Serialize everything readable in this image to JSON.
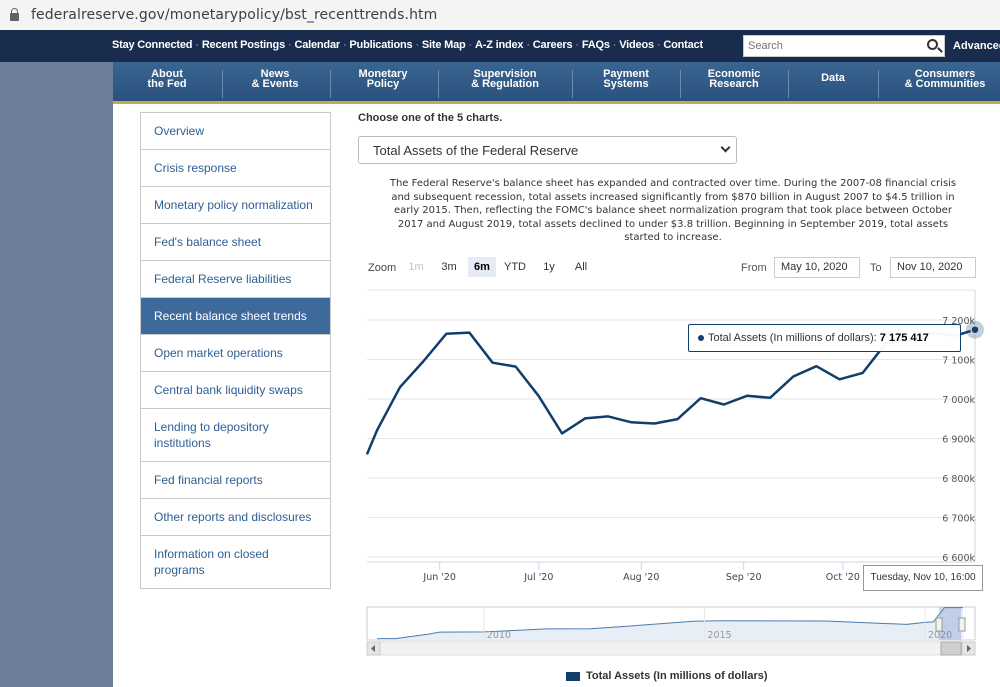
{
  "browser": {
    "url": "federalreserve.gov/monetarypolicy/bst_recenttrends.htm"
  },
  "header": {
    "utility_links": [
      "Stay Connected",
      "Recent Postings",
      "Calendar",
      "Publications",
      "Site Map",
      "A-Z index",
      "Careers",
      "FAQs",
      "Videos",
      "Contact"
    ],
    "search_placeholder": "Search",
    "advanced_label": "Advanced"
  },
  "nav": [
    {
      "line1": "About",
      "line2": "the Fed"
    },
    {
      "line1": "News",
      "line2": "& Events"
    },
    {
      "line1": "Monetary",
      "line2": "Policy"
    },
    {
      "line1": "Supervision",
      "line2": "& Regulation"
    },
    {
      "line1": "Payment",
      "line2": "Systems"
    },
    {
      "line1": "Economic",
      "line2": "Research"
    },
    {
      "line1": "Data",
      "line2": ""
    },
    {
      "line1": "Consumers",
      "line2": "& Communities"
    }
  ],
  "sidebar": {
    "items": [
      {
        "label": "Overview"
      },
      {
        "label": "Crisis response"
      },
      {
        "label": "Monetary policy normalization"
      },
      {
        "label": "Fed's balance sheet"
      },
      {
        "label": "Federal Reserve liabilities"
      },
      {
        "label": "Recent balance sheet trends",
        "active": true
      },
      {
        "label": "Open market operations"
      },
      {
        "label": "Central bank liquidity swaps"
      },
      {
        "label": "Lending to depository institutions"
      },
      {
        "label": "Fed financial reports"
      },
      {
        "label": "Other reports and disclosures"
      },
      {
        "label": "Information on closed programs"
      }
    ]
  },
  "main": {
    "choose_label": "Choose one of the 5 charts.",
    "selected_chart": "Total Assets of the Federal Reserve",
    "description": "The Federal Reserve's balance sheet has expanded and contracted over time. During the 2007-08 financial crisis and subsequent recession, total assets increased significantly from $870 billion in August 2007 to $4.5 trillion in early 2015. Then, reflecting the FOMC's balance sheet normalization program that took place between October 2017 and August 2019, total assets declined to under $3.8 trillion. Beginning in September 2019, total assets started to increase."
  },
  "controls": {
    "zoom_label": "Zoom",
    "zoom_buttons": [
      {
        "label": "1m",
        "state": "disabled"
      },
      {
        "label": "3m",
        "state": "normal"
      },
      {
        "label": "6m",
        "state": "active"
      },
      {
        "label": "YTD",
        "state": "normal"
      },
      {
        "label": "1y",
        "state": "normal"
      },
      {
        "label": "All",
        "state": "normal"
      }
    ],
    "from_label": "From",
    "from_date": "May 10, 2020",
    "to_label": "To",
    "to_date": "Nov 10, 2020"
  },
  "tooltip": {
    "series_label": "Total Assets (In millions of dollars):",
    "value": "7 175 417",
    "date": "Tuesday, Nov 10, 16:00"
  },
  "chart_data": {
    "type": "line",
    "series": [
      {
        "name": "Total Assets (In millions of dollars)",
        "color": "#123e6b",
        "points": [
          [
            "2020-05-10",
            6860000
          ],
          [
            "2020-05-13",
            6920000
          ],
          [
            "2020-05-20",
            7030000
          ],
          [
            "2020-05-27",
            7095000
          ],
          [
            "2020-06-03",
            7165000
          ],
          [
            "2020-06-10",
            7168000
          ],
          [
            "2020-06-17",
            7092000
          ],
          [
            "2020-06-24",
            7082000
          ],
          [
            "2020-07-01",
            7007000
          ],
          [
            "2020-07-08",
            6913000
          ],
          [
            "2020-07-15",
            6951000
          ],
          [
            "2020-07-22",
            6956000
          ],
          [
            "2020-07-29",
            6941000
          ],
          [
            "2020-08-05",
            6938000
          ],
          [
            "2020-08-12",
            6949000
          ],
          [
            "2020-08-19",
            7002000
          ],
          [
            "2020-08-26",
            6986000
          ],
          [
            "2020-09-02",
            7008000
          ],
          [
            "2020-09-09",
            7003000
          ],
          [
            "2020-09-16",
            7057000
          ],
          [
            "2020-09-23",
            7083000
          ],
          [
            "2020-09-30",
            7050000
          ],
          [
            "2020-10-07",
            7066000
          ],
          [
            "2020-10-14",
            7141000
          ],
          [
            "2020-10-21",
            7149000
          ],
          [
            "2020-10-28",
            7168000
          ],
          [
            "2020-11-04",
            7160000
          ],
          [
            "2020-11-10",
            7175417
          ]
        ]
      }
    ],
    "ylim": [
      6600000,
      7200000
    ],
    "y_ticks": [
      6600000,
      6700000,
      6800000,
      6900000,
      7000000,
      7100000,
      7200000
    ],
    "y_tick_labels": [
      "6 600k",
      "6 700k",
      "6 800k",
      "6 900k",
      "7 000k",
      "7 100k",
      "7 200k"
    ],
    "x_ticks": [
      "2020-06-01",
      "2020-07-01",
      "2020-08-01",
      "2020-09-01",
      "2020-10-01"
    ],
    "x_tick_labels": [
      "Jun '20",
      "Jul '20",
      "Aug '20",
      "Sep '20",
      "Oct '20"
    ],
    "navigator": {
      "labels": [
        "2010",
        "2015",
        "2020"
      ],
      "overview_values": [
        [
          "2008-01-01",
          890000
        ],
        [
          "2008-10-01",
          1800000
        ],
        [
          "2009-01-01",
          2200000
        ],
        [
          "2010-01-01",
          2250000
        ],
        [
          "2011-06-01",
          2850000
        ],
        [
          "2012-06-01",
          2900000
        ],
        [
          "2013-06-01",
          3500000
        ],
        [
          "2014-10-01",
          4400000
        ],
        [
          "2015-06-01",
          4500000
        ],
        [
          "2017-10-01",
          4460000
        ],
        [
          "2019-08-01",
          3760000
        ],
        [
          "2020-01-01",
          4170000
        ],
        [
          "2020-03-10",
          4300000
        ],
        [
          "2020-06-10",
          7170000
        ],
        [
          "2020-11-10",
          7175417
        ]
      ]
    },
    "legend": "Total Assets (In millions of dollars)",
    "legend_position": "bottom"
  }
}
